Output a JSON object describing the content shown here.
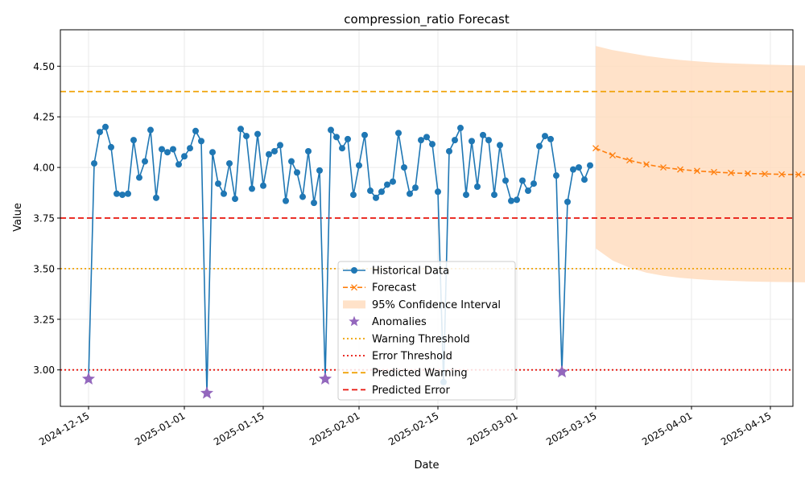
{
  "chart_data": {
    "type": "line",
    "title": "compression_ratio Forecast",
    "xlabel": "Date",
    "ylabel": "Value",
    "x_range": [
      "2024-12-10",
      "2025-04-19"
    ],
    "ylim": [
      2.82,
      4.68
    ],
    "grid": true,
    "legend_position": "lower-center",
    "x_ticks": [
      "2024-12-15",
      "2025-01-01",
      "2025-01-15",
      "2025-02-01",
      "2025-02-15",
      "2025-03-01",
      "2025-03-15",
      "2025-04-01",
      "2025-04-15"
    ],
    "y_ticks": [
      "3.00",
      "3.25",
      "3.50",
      "3.75",
      "4.00",
      "4.25",
      "4.50"
    ],
    "colors": {
      "historical": "#1f77b4",
      "forecast": "#ff7f0e",
      "confidence": "#ffddbf",
      "anomaly": "#9467bd",
      "warning_threshold": "#f0a30a",
      "error_threshold": "#e8130b",
      "predicted_warning": "#f0a30a",
      "predicted_error": "#e8130b"
    },
    "historical": {
      "name": "Historical Data",
      "start_date": "2024-12-15",
      "values": [
        2.955,
        4.02,
        4.175,
        4.2,
        4.1,
        3.87,
        3.865,
        3.87,
        4.135,
        3.95,
        4.03,
        4.185,
        3.85,
        4.09,
        4.075,
        4.09,
        4.015,
        4.055,
        4.095,
        4.18,
        4.13,
        2.885,
        4.075,
        3.92,
        3.87,
        4.02,
        3.845,
        4.19,
        4.155,
        3.895,
        4.165,
        3.91,
        4.065,
        4.08,
        4.11,
        3.835,
        4.03,
        3.975,
        3.855,
        4.08,
        3.825,
        3.985,
        2.955,
        4.185,
        4.15,
        4.095,
        4.14,
        3.865,
        4.01,
        4.16,
        3.885,
        3.85,
        3.88,
        3.915,
        3.93,
        4.17,
        4.0,
        3.87,
        3.9,
        4.135,
        4.15,
        4.115,
        3.88,
        2.94,
        4.08,
        4.135,
        4.195,
        3.865,
        4.13,
        3.905,
        4.16,
        4.135,
        3.865,
        4.11,
        3.935,
        3.835,
        3.84,
        3.935,
        3.885,
        3.92,
        4.105,
        4.155,
        4.14,
        3.96,
        2.99,
        3.83,
        3.99,
        4.0,
        3.94,
        4.01
      ]
    },
    "forecast": {
      "name": "Forecast",
      "start_date": "2025-03-15",
      "values": [
        4.095,
        4.06,
        4.035,
        4.015,
        4.0,
        3.99,
        3.983,
        3.977,
        3.973,
        3.97,
        3.968,
        3.966,
        3.965,
        3.964,
        3.963,
        3.963,
        3.962,
        3.962,
        3.962,
        3.962,
        3.962,
        3.962,
        3.962,
        3.962,
        3.962,
        3.962,
        3.962,
        3.962,
        3.962,
        3.962
      ]
    },
    "confidence_interval": {
      "name": "95% Confidence Interval",
      "upper": [
        4.6,
        4.58,
        4.565,
        4.551,
        4.54,
        4.531,
        4.524,
        4.518,
        4.514,
        4.511,
        4.508,
        4.506,
        4.504,
        4.503,
        4.502,
        4.501,
        4.5,
        4.5,
        4.499,
        4.499,
        4.499,
        4.498,
        4.498,
        4.498,
        4.498,
        4.498,
        4.498,
        4.498,
        4.498,
        4.498
      ],
      "lower": [
        3.6,
        3.54,
        3.505,
        3.48,
        3.465,
        3.455,
        3.448,
        3.443,
        3.44,
        3.437,
        3.435,
        3.434,
        3.433,
        3.432,
        3.431,
        3.431,
        3.43,
        3.43,
        3.43,
        3.43,
        3.429,
        3.429,
        3.429,
        3.429,
        3.429,
        3.429,
        3.429,
        3.429,
        3.429,
        3.429
      ]
    },
    "anomalies": {
      "name": "Anomalies",
      "points": [
        {
          "x": "2024-12-15",
          "y": 2.955
        },
        {
          "x": "2025-01-05",
          "y": 2.885
        },
        {
          "x": "2025-01-26",
          "y": 2.955
        },
        {
          "x": "2025-03-09",
          "y": 2.99
        }
      ]
    },
    "thresholds": [
      {
        "name": "Warning Threshold",
        "value": 3.5,
        "style": "dotted",
        "color_key": "warning_threshold"
      },
      {
        "name": "Error Threshold",
        "value": 3.0,
        "style": "dotted",
        "color_key": "error_threshold"
      },
      {
        "name": "Predicted Warning",
        "value": 4.375,
        "style": "dashed",
        "color_key": "predicted_warning"
      },
      {
        "name": "Predicted Error",
        "value": 3.75,
        "style": "dashed",
        "color_key": "predicted_error"
      }
    ]
  }
}
